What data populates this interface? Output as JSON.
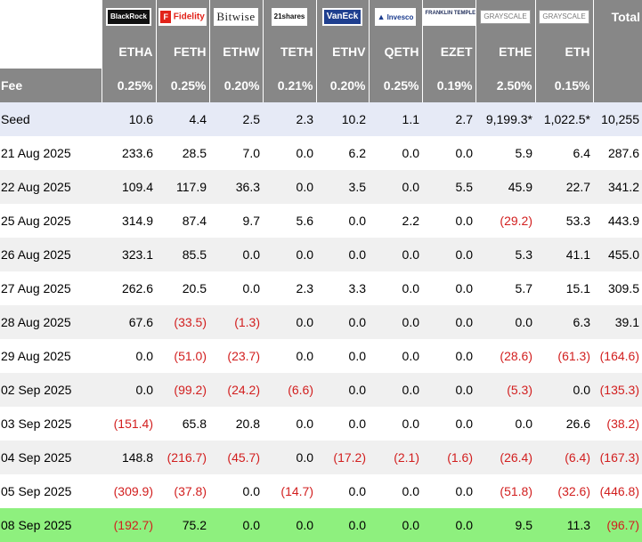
{
  "issuers": [
    "BlackRock",
    "Fidelity",
    "Bitwise",
    "21shares",
    "VanEck",
    "Invesco",
    "FRANKLIN TEMPLETON",
    "GRAYSCALE",
    "GRAYSCALE"
  ],
  "total_label": "Total",
  "tickers": [
    "ETHA",
    "FETH",
    "ETHW",
    "TETH",
    "ETHV",
    "QETH",
    "EZET",
    "ETHE",
    "ETH"
  ],
  "fee_label": "Fee",
  "fees": [
    "0.25%",
    "0.25%",
    "0.20%",
    "0.21%",
    "0.20%",
    "0.25%",
    "0.19%",
    "2.50%",
    "0.15%"
  ],
  "rows": [
    {
      "label": "Seed",
      "cells": [
        "10.6",
        "4.4",
        "2.5",
        "2.3",
        "10.2",
        "1.1",
        "2.7",
        "9,199.3*",
        "1,022.5*",
        "10,255"
      ]
    },
    {
      "label": "21 Aug 2025",
      "cells": [
        "233.6",
        "28.5",
        "7.0",
        "0.0",
        "6.2",
        "0.0",
        "0.0",
        "5.9",
        "6.4",
        "287.6"
      ]
    },
    {
      "label": "22 Aug 2025",
      "cells": [
        "109.4",
        "117.9",
        "36.3",
        "0.0",
        "3.5",
        "0.0",
        "5.5",
        "45.9",
        "22.7",
        "341.2"
      ]
    },
    {
      "label": "25 Aug 2025",
      "cells": [
        "314.9",
        "87.4",
        "9.7",
        "5.6",
        "0.0",
        "2.2",
        "0.0",
        "(29.2)",
        "53.3",
        "443.9"
      ]
    },
    {
      "label": "26 Aug 2025",
      "cells": [
        "323.1",
        "85.5",
        "0.0",
        "0.0",
        "0.0",
        "0.0",
        "0.0",
        "5.3",
        "41.1",
        "455.0"
      ]
    },
    {
      "label": "27 Aug 2025",
      "cells": [
        "262.6",
        "20.5",
        "0.0",
        "2.3",
        "3.3",
        "0.0",
        "0.0",
        "5.7",
        "15.1",
        "309.5"
      ]
    },
    {
      "label": "28 Aug 2025",
      "cells": [
        "67.6",
        "(33.5)",
        "(1.3)",
        "0.0",
        "0.0",
        "0.0",
        "0.0",
        "0.0",
        "6.3",
        "39.1"
      ]
    },
    {
      "label": "29 Aug 2025",
      "cells": [
        "0.0",
        "(51.0)",
        "(23.7)",
        "0.0",
        "0.0",
        "0.0",
        "0.0",
        "(28.6)",
        "(61.3)",
        "(164.6)"
      ]
    },
    {
      "label": "02 Sep 2025",
      "cells": [
        "0.0",
        "(99.2)",
        "(24.2)",
        "(6.6)",
        "0.0",
        "0.0",
        "0.0",
        "(5.3)",
        "0.0",
        "(135.3)"
      ]
    },
    {
      "label": "03 Sep 2025",
      "cells": [
        "(151.4)",
        "65.8",
        "20.8",
        "0.0",
        "0.0",
        "0.0",
        "0.0",
        "0.0",
        "26.6",
        "(38.2)"
      ]
    },
    {
      "label": "04 Sep 2025",
      "cells": [
        "148.8",
        "(216.7)",
        "(45.7)",
        "0.0",
        "(17.2)",
        "(2.1)",
        "(1.6)",
        "(26.4)",
        "(6.4)",
        "(167.3)"
      ]
    },
    {
      "label": "05 Sep 2025",
      "cells": [
        "(309.9)",
        "(37.8)",
        "0.0",
        "(14.7)",
        "0.0",
        "0.0",
        "0.0",
        "(51.8)",
        "(32.6)",
        "(446.8)"
      ]
    },
    {
      "label": "08 Sep 2025",
      "cells": [
        "(192.7)",
        "75.2",
        "0.0",
        "0.0",
        "0.0",
        "0.0",
        "0.0",
        "9.5",
        "11.3",
        "(96.7)"
      ]
    }
  ],
  "colors": {
    "header_bg": "#878787",
    "seed_bg": "#e6eaf6",
    "stripe_bg": "#f0f0f0",
    "highlight_bg": "#8ef07e",
    "negative": "#d21e1e"
  }
}
